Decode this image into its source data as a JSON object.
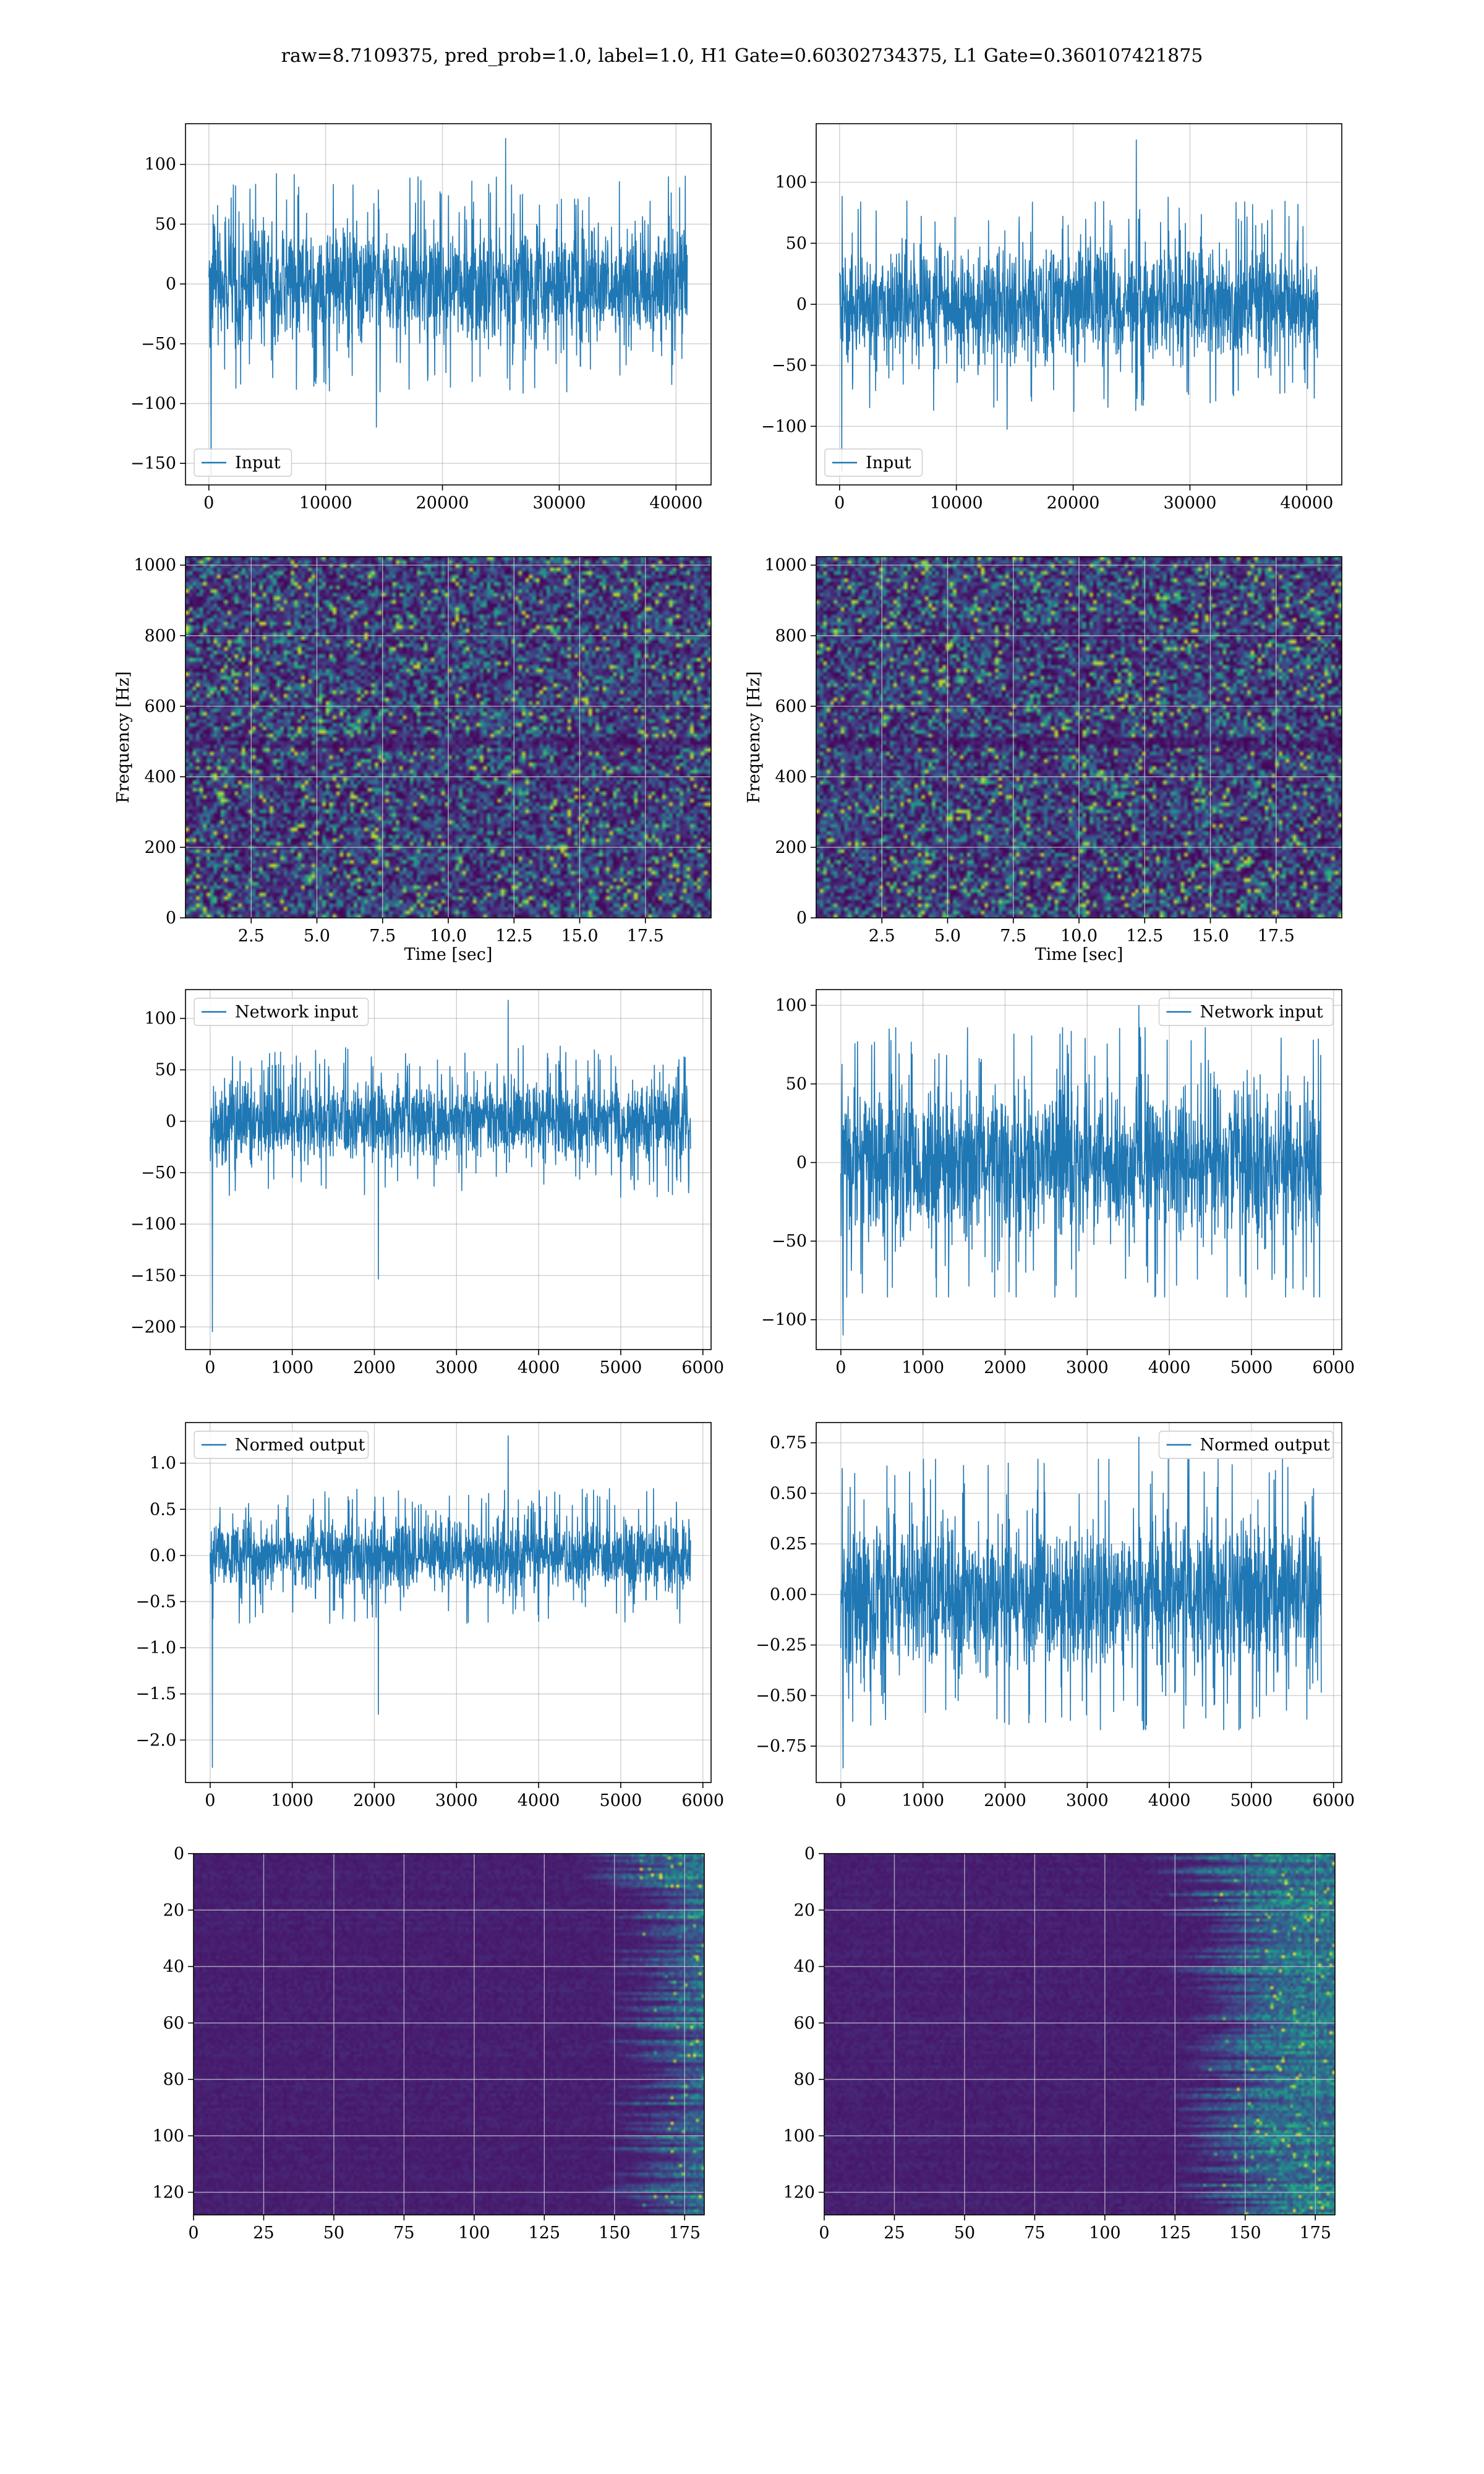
{
  "figure": {
    "suptitle": "raw=8.7109375, pred_prob=1.0, label=1.0, H1 Gate=0.60302734375, L1 Gate=0.360107421875"
  },
  "colors": {
    "line": "#1f77b4",
    "grid": "#b0b0b0",
    "viridis_dark": "#440154",
    "viridis_mid": "#21918c",
    "viridis_bright": "#fde725"
  },
  "chart_data": [
    {
      "type": "line",
      "panel": "row1-left",
      "series": [
        {
          "name": "Input",
          "envelope": {
            "x_start": 0,
            "x_end": 40960,
            "typical": 50,
            "peak_max": 122,
            "peak_min": -160
          }
        }
      ],
      "xlim": [
        -2000,
        43000
      ],
      "ylim": [
        -168,
        134
      ],
      "xticks": [
        0,
        10000,
        20000,
        30000,
        40000
      ],
      "xtick_labels": [
        "0",
        "10000",
        "20000",
        "30000",
        "40000"
      ],
      "yticks": [
        -150,
        -100,
        -50,
        0,
        50,
        100
      ],
      "ytick_labels": [
        "−150",
        "−100",
        "−50",
        "0",
        "50",
        "100"
      ],
      "xlabel": "",
      "ylabel": "",
      "legend": "lower-left",
      "grid": true
    },
    {
      "type": "line",
      "panel": "row1-right",
      "series": [
        {
          "name": "Input",
          "envelope": {
            "x_start": 0,
            "x_end": 40960,
            "typical": 48,
            "peak_max": 135,
            "peak_min": -137
          }
        }
      ],
      "xlim": [
        -2000,
        43000
      ],
      "ylim": [
        -148,
        148
      ],
      "xticks": [
        0,
        10000,
        20000,
        30000,
        40000
      ],
      "xtick_labels": [
        "0",
        "10000",
        "20000",
        "30000",
        "40000"
      ],
      "yticks": [
        -100,
        -50,
        0,
        50,
        100
      ],
      "ytick_labels": [
        "−100",
        "−50",
        "0",
        "50",
        "100"
      ],
      "xlabel": "",
      "ylabel": "",
      "legend": "lower-left",
      "grid": true
    },
    {
      "type": "heatmap",
      "panel": "row2-left",
      "xlim": [
        0,
        20
      ],
      "ylim": [
        0,
        1024
      ],
      "xticks": [
        2.5,
        5.0,
        7.5,
        10.0,
        12.5,
        15.0,
        17.5
      ],
      "xtick_labels": [
        "2.5",
        "5.0",
        "7.5",
        "10.0",
        "12.5",
        "15.0",
        "17.5"
      ],
      "yticks": [
        0,
        200,
        400,
        600,
        800,
        1000
      ],
      "ytick_labels": [
        "0",
        "200",
        "400",
        "600",
        "800",
        "1000"
      ],
      "xlabel": "Time [sec]",
      "ylabel": "Frequency [Hz]",
      "colormap": "viridis",
      "grid": true
    },
    {
      "type": "heatmap",
      "panel": "row2-right",
      "xlim": [
        0,
        20
      ],
      "ylim": [
        0,
        1024
      ],
      "xticks": [
        2.5,
        5.0,
        7.5,
        10.0,
        12.5,
        15.0,
        17.5
      ],
      "xtick_labels": [
        "2.5",
        "5.0",
        "7.5",
        "10.0",
        "12.5",
        "15.0",
        "17.5"
      ],
      "yticks": [
        0,
        200,
        400,
        600,
        800,
        1000
      ],
      "ytick_labels": [
        "0",
        "200",
        "400",
        "600",
        "800",
        "1000"
      ],
      "xlabel": "Time [sec]",
      "ylabel": "Frequency [Hz]",
      "colormap": "viridis",
      "grid": true
    },
    {
      "type": "line",
      "panel": "row3-left",
      "series": [
        {
          "name": "Network input",
          "envelope": {
            "x_start": 0,
            "x_end": 5850,
            "typical": 40,
            "peak_max": 118,
            "peak_min": -205
          }
        }
      ],
      "xlim": [
        -300,
        6100
      ],
      "ylim": [
        -222,
        128
      ],
      "xticks": [
        0,
        1000,
        2000,
        3000,
        4000,
        5000,
        6000
      ],
      "xtick_labels": [
        "0",
        "1000",
        "2000",
        "3000",
        "4000",
        "5000",
        "6000"
      ],
      "yticks": [
        -200,
        -150,
        -100,
        -50,
        0,
        50,
        100
      ],
      "ytick_labels": [
        "−200",
        "−150",
        "−100",
        "−50",
        "0",
        "50",
        "100"
      ],
      "xlabel": "",
      "ylabel": "",
      "legend": "upper-left",
      "grid": true
    },
    {
      "type": "line",
      "panel": "row3-right",
      "series": [
        {
          "name": "Network input",
          "envelope": {
            "x_start": 0,
            "x_end": 5850,
            "typical": 50,
            "peak_max": 100,
            "peak_min": -110
          }
        }
      ],
      "xlim": [
        -300,
        6100
      ],
      "ylim": [
        -119,
        110
      ],
      "xticks": [
        0,
        1000,
        2000,
        3000,
        4000,
        5000,
        6000
      ],
      "xtick_labels": [
        "0",
        "1000",
        "2000",
        "3000",
        "4000",
        "5000",
        "6000"
      ],
      "yticks": [
        -100,
        -50,
        0,
        50,
        100
      ],
      "ytick_labels": [
        "−100",
        "−50",
        "0",
        "50",
        "100"
      ],
      "xlabel": "",
      "ylabel": "",
      "legend": "upper-right",
      "grid": true
    },
    {
      "type": "line",
      "panel": "row4-left",
      "series": [
        {
          "name": "Normed output",
          "envelope": {
            "x_start": 0,
            "x_end": 5850,
            "typical": 0.4,
            "peak_max": 1.3,
            "peak_min": -2.3
          }
        }
      ],
      "xlim": [
        -300,
        6100
      ],
      "ylim": [
        -2.46,
        1.44
      ],
      "xticks": [
        0,
        1000,
        2000,
        3000,
        4000,
        5000,
        6000
      ],
      "xtick_labels": [
        "0",
        "1000",
        "2000",
        "3000",
        "4000",
        "5000",
        "6000"
      ],
      "yticks": [
        -2.0,
        -1.5,
        -1.0,
        -0.5,
        0.0,
        0.5,
        1.0
      ],
      "ytick_labels": [
        "−2.0",
        "−1.5",
        "−1.0",
        "−0.5",
        "0.0",
        "0.5",
        "1.0"
      ],
      "xlabel": "",
      "ylabel": "",
      "legend": "upper-left",
      "grid": true
    },
    {
      "type": "line",
      "panel": "row4-right",
      "series": [
        {
          "name": "Normed output",
          "envelope": {
            "x_start": 0,
            "x_end": 5850,
            "typical": 0.38,
            "peak_max": 0.78,
            "peak_min": -0.86
          }
        }
      ],
      "xlim": [
        -300,
        6100
      ],
      "ylim": [
        -0.93,
        0.85
      ],
      "xticks": [
        0,
        1000,
        2000,
        3000,
        4000,
        5000,
        6000
      ],
      "xtick_labels": [
        "0",
        "1000",
        "2000",
        "3000",
        "4000",
        "5000",
        "6000"
      ],
      "yticks": [
        -0.75,
        -0.5,
        -0.25,
        0.0,
        0.25,
        0.5,
        0.75
      ],
      "ytick_labels": [
        "−0.75",
        "−0.50",
        "−0.25",
        "0.00",
        "0.25",
        "0.50",
        "0.75"
      ],
      "xlabel": "",
      "ylabel": "",
      "legend": "upper-right",
      "grid": true
    },
    {
      "type": "heatmap",
      "panel": "row5-left",
      "rows": 128,
      "cols": 182,
      "y_inverted": true,
      "xlim": [
        0,
        182
      ],
      "ylim": [
        0,
        128
      ],
      "xticks": [
        0,
        25,
        50,
        75,
        100,
        125,
        150,
        175
      ],
      "xtick_labels": [
        "0",
        "25",
        "50",
        "75",
        "100",
        "125",
        "150",
        "175"
      ],
      "yticks": [
        0,
        20,
        40,
        60,
        80,
        100,
        120
      ],
      "ytick_labels": [
        "0",
        "20",
        "40",
        "60",
        "80",
        "100",
        "120"
      ],
      "xlabel": "",
      "ylabel": "",
      "colormap": "viridis",
      "grid": true
    },
    {
      "type": "heatmap",
      "panel": "row5-right",
      "rows": 128,
      "cols": 182,
      "y_inverted": true,
      "xlim": [
        0,
        182
      ],
      "ylim": [
        0,
        128
      ],
      "xticks": [
        0,
        25,
        50,
        75,
        100,
        125,
        150,
        175
      ],
      "xtick_labels": [
        "0",
        "25",
        "50",
        "75",
        "100",
        "125",
        "150",
        "175"
      ],
      "yticks": [
        0,
        20,
        40,
        60,
        80,
        100,
        120
      ],
      "ytick_labels": [
        "0",
        "20",
        "40",
        "60",
        "80",
        "100",
        "120"
      ],
      "xlabel": "",
      "ylabel": "",
      "colormap": "viridis",
      "grid": true
    }
  ]
}
